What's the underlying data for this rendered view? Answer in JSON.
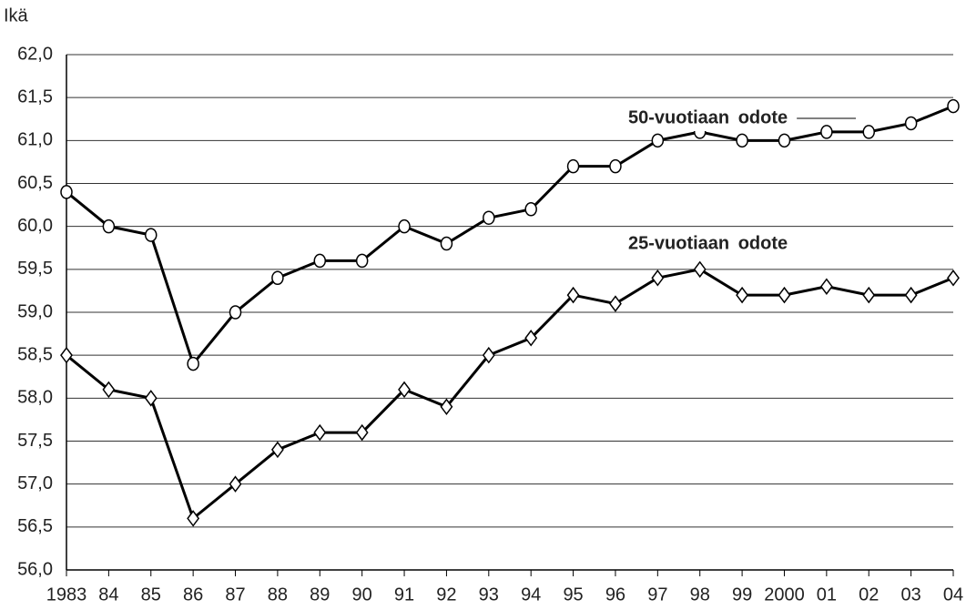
{
  "chart_data": {
    "type": "line",
    "y_label": "Ikä",
    "categories": [
      "1983",
      "84",
      "85",
      "86",
      "87",
      "88",
      "89",
      "90",
      "91",
      "92",
      "93",
      "94",
      "95",
      "96",
      "97",
      "98",
      "99",
      "2000",
      "01",
      "02",
      "03",
      "04"
    ],
    "series": [
      {
        "name": "50-vuotiaan odote",
        "color": "#000000",
        "marker": "circle",
        "values": [
          60.4,
          60.0,
          59.9,
          58.4,
          59.0,
          59.4,
          59.6,
          59.6,
          60.0,
          59.8,
          60.1,
          60.2,
          60.7,
          60.7,
          61.0,
          61.1,
          61.0,
          61.0,
          61.1,
          61.1,
          61.2,
          61.4
        ]
      },
      {
        "name": "25-vuotiaan odote",
        "color": "#000000",
        "marker": "diamond",
        "values": [
          58.5,
          58.1,
          58.0,
          56.6,
          57.0,
          57.4,
          57.6,
          57.6,
          58.1,
          57.9,
          58.5,
          58.7,
          59.2,
          59.1,
          59.4,
          59.5,
          59.2,
          59.2,
          59.3,
          59.2,
          59.2,
          59.4
        ]
      }
    ],
    "ylim": [
      56,
      62
    ],
    "yticks": [
      {
        "value": 56,
        "label": "56,0"
      },
      {
        "value": 56.5,
        "label": "56,5"
      },
      {
        "value": 57,
        "label": "57,0"
      },
      {
        "value": 57.5,
        "label": "57,5"
      },
      {
        "value": 58,
        "label": "58,0"
      },
      {
        "value": 58.5,
        "label": "58,5"
      },
      {
        "value": 59,
        "label": "59,0"
      },
      {
        "value": 59.5,
        "label": "59,5"
      },
      {
        "value": 60,
        "label": "60,0"
      },
      {
        "value": 60.5,
        "label": "60,5"
      },
      {
        "value": 61,
        "label": "61,0"
      },
      {
        "value": 61.5,
        "label": "61,5"
      },
      {
        "value": 62,
        "label": "62,0"
      }
    ],
    "grid": true
  }
}
